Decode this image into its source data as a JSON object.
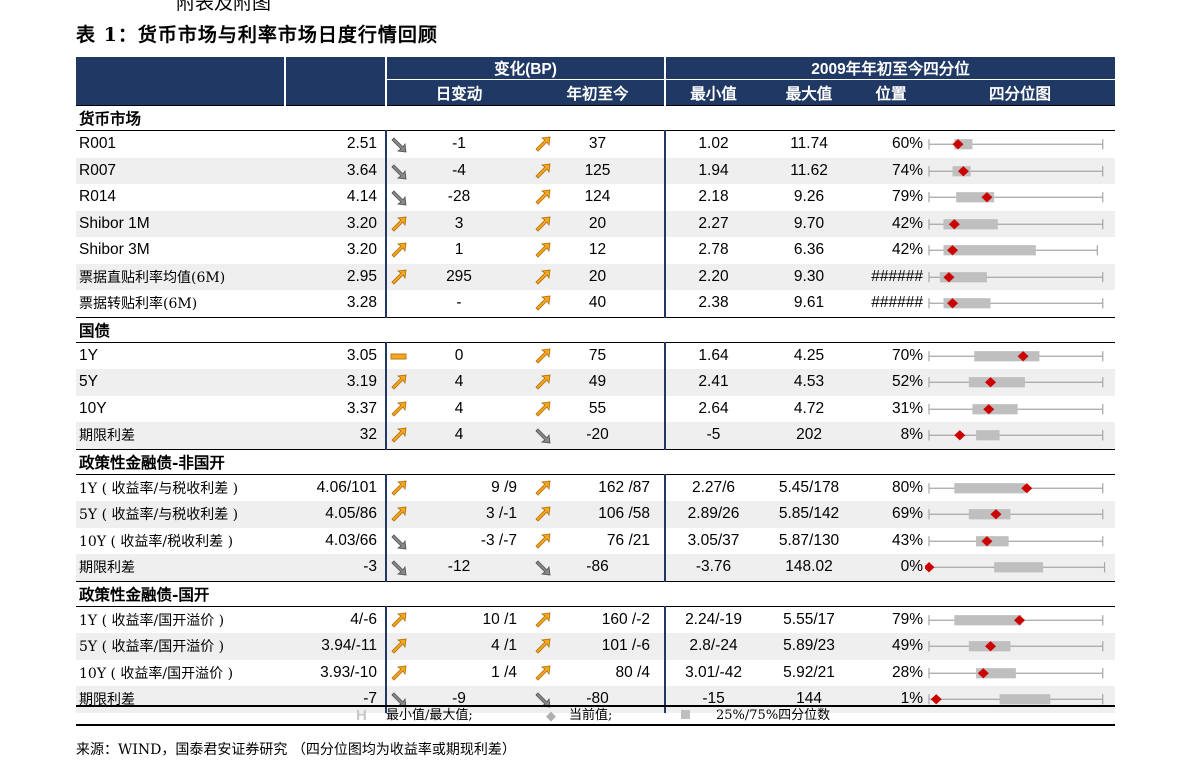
{
  "clipped_header": "附表及附图",
  "title": "表 1：货币市场与利率市场日度行情回顾",
  "header": {
    "group_change": "变化(BP)",
    "group_quartile": "2009年年初至今四分位",
    "daily_change": "日变动",
    "ytd_change": "年初至今",
    "min": "最小值",
    "max": "最大值",
    "position": "位置",
    "box_chart": "四分位图"
  },
  "colors": {
    "header_bg": "#1f3864",
    "up_arrow": "#f5a623",
    "down_arrow": "#8a8a8a",
    "marker": "#cc0000",
    "box": "#bfbfbf"
  },
  "sections": [
    {
      "name": "货币市场",
      "rows": [
        {
          "name": "R001",
          "value": "2.51",
          "d_dir": "down",
          "d": "-1",
          "y_dir": "up",
          "y": "37",
          "min": "1.02",
          "max": "11.74",
          "pos": "60%",
          "box": {
            "q1": 0.14,
            "q3": 0.24,
            "cur": 0.16,
            "max": 0.96
          }
        },
        {
          "name": "R007",
          "value": "3.64",
          "d_dir": "down",
          "d": "-4",
          "y_dir": "up",
          "y": "125",
          "min": "1.94",
          "max": "11.62",
          "pos": "74%",
          "box": {
            "q1": 0.13,
            "q3": 0.23,
            "cur": 0.19,
            "max": 0.96
          }
        },
        {
          "name": "R014",
          "value": "4.14",
          "d_dir": "down",
          "d": "-28",
          "y_dir": "up",
          "y": "124",
          "min": "2.18",
          "max": "9.26",
          "pos": "79%",
          "box": {
            "q1": 0.15,
            "q3": 0.36,
            "cur": 0.32,
            "max": 0.96
          }
        },
        {
          "name": "Shibor 1M",
          "value": "3.20",
          "d_dir": "up",
          "d": "3",
          "y_dir": "up",
          "y": "20",
          "min": "2.27",
          "max": "9.70",
          "pos": "42%",
          "box": {
            "q1": 0.08,
            "q3": 0.38,
            "cur": 0.14,
            "max": 0.96
          }
        },
        {
          "name": "Shibor 3M",
          "value": "3.20",
          "d_dir": "up",
          "d": "1",
          "y_dir": "up",
          "y": "12",
          "min": "2.78",
          "max": "6.36",
          "pos": "42%",
          "box": {
            "q1": 0.08,
            "q3": 0.59,
            "cur": 0.13,
            "max": 0.93
          }
        },
        {
          "name": "票据直贴利率均值(6M)",
          "value": "2.95",
          "d_dir": "up",
          "d": "295",
          "y_dir": "up",
          "y": "20",
          "min": "2.20",
          "max": "9.30",
          "pos": "######",
          "box": {
            "q1": 0.06,
            "q3": 0.32,
            "cur": 0.11,
            "max": 0.96
          }
        },
        {
          "name": "票据转贴利率(6M)",
          "value": "3.28",
          "d_dir": "none",
          "d": "-",
          "y_dir": "up",
          "y": "40",
          "min": "2.38",
          "max": "9.61",
          "pos": "######",
          "box": {
            "q1": 0.08,
            "q3": 0.34,
            "cur": 0.13,
            "max": 0.96
          }
        }
      ]
    },
    {
      "name": "国债",
      "rows": [
        {
          "name": "1Y",
          "value": "3.05",
          "d_dir": "flat",
          "d": "0",
          "y_dir": "up",
          "y": "75",
          "min": "1.64",
          "max": "4.25",
          "pos": "70%",
          "box": {
            "q1": 0.25,
            "q3": 0.61,
            "cur": 0.52,
            "max": 0.96
          }
        },
        {
          "name": "5Y",
          "value": "3.19",
          "d_dir": "up",
          "d": "4",
          "y_dir": "up",
          "y": "49",
          "min": "2.41",
          "max": "4.53",
          "pos": "52%",
          "box": {
            "q1": 0.22,
            "q3": 0.53,
            "cur": 0.34,
            "max": 0.96
          }
        },
        {
          "name": "10Y",
          "value": "3.37",
          "d_dir": "up",
          "d": "4",
          "y_dir": "up",
          "y": "55",
          "min": "2.64",
          "max": "4.72",
          "pos": "31%",
          "box": {
            "q1": 0.24,
            "q3": 0.49,
            "cur": 0.33,
            "max": 0.96
          }
        },
        {
          "name": "期限利差",
          "value": "32",
          "d_dir": "up",
          "d": "4",
          "y_dir": "down",
          "y": "-20",
          "min": "-5",
          "max": "202",
          "pos": "8%",
          "box": {
            "q1": 0.26,
            "q3": 0.39,
            "cur": 0.17,
            "max": 0.96
          }
        }
      ]
    },
    {
      "name": "政策性金融债-非国开",
      "rows": [
        {
          "name": "1Y ( 收益率/与税收利差 )",
          "value": "4.06/101",
          "d_dir": "up",
          "d": "9 /9",
          "y_dir": "up",
          "y": "162 /87",
          "min": "2.27/6",
          "max": "5.45/178",
          "pos": "80%",
          "box": {
            "q1": 0.14,
            "q3": 0.53,
            "cur": 0.54,
            "max": 0.96
          }
        },
        {
          "name": "5Y ( 收益率/与税收利差 )",
          "value": "4.05/86",
          "d_dir": "up",
          "d": "3 /-1",
          "y_dir": "up",
          "y": "106 /58",
          "min": "2.89/26",
          "max": "5.85/142",
          "pos": "69%",
          "box": {
            "q1": 0.22,
            "q3": 0.45,
            "cur": 0.37,
            "max": 0.96
          }
        },
        {
          "name": "10Y ( 收益率/税收利差 )",
          "value": "4.03/66",
          "d_dir": "down",
          "d": "-3 /-7",
          "y_dir": "up",
          "y": "76 /21",
          "min": "3.05/37",
          "max": "5.87/130",
          "pos": "43%",
          "box": {
            "q1": 0.26,
            "q3": 0.44,
            "cur": 0.32,
            "max": 0.96
          }
        },
        {
          "name": "期限利差",
          "value": "-3",
          "d_dir": "down",
          "d": "-12",
          "y_dir": "down",
          "y": "-86",
          "min": "-3.76",
          "max": "148.02",
          "pos": "0%",
          "box": {
            "q1": 0.36,
            "q3": 0.63,
            "cur": 0.0,
            "max": 0.97
          }
        }
      ]
    },
    {
      "name": "政策性金融债-国开",
      "rows": [
        {
          "name": "1Y ( 收益率/国开溢价 )",
          "value": "4/-6",
          "d_dir": "up",
          "d": "10 /1",
          "y_dir": "up",
          "y": "160 /-2",
          "min": "2.24/-19",
          "max": "5.55/17",
          "pos": "79%",
          "box": {
            "q1": 0.14,
            "q3": 0.51,
            "cur": 0.5,
            "max": 0.96
          }
        },
        {
          "name": "5Y ( 收益率/国开溢价 )",
          "value": "3.94/-11",
          "d_dir": "up",
          "d": "4 /1",
          "y_dir": "up",
          "y": "101 /-6",
          "min": "2.8/-24",
          "max": "5.89/23",
          "pos": "49%",
          "box": {
            "q1": 0.22,
            "q3": 0.45,
            "cur": 0.34,
            "max": 0.96
          }
        },
        {
          "name": "10Y ( 收益率/国开溢价 )",
          "value": "3.93/-10",
          "d_dir": "up",
          "d": "1 /4",
          "y_dir": "up",
          "y": "80 /4",
          "min": "3.01/-42",
          "max": "5.92/21",
          "pos": "28%",
          "box": {
            "q1": 0.26,
            "q3": 0.48,
            "cur": 0.3,
            "max": 0.96
          }
        },
        {
          "name": "期限利差",
          "value": "-7",
          "d_dir": "down",
          "d": "-9",
          "y_dir": "down",
          "y": "-80",
          "min": "-15",
          "max": "144",
          "pos": "1%",
          "box": {
            "q1": 0.39,
            "q3": 0.67,
            "cur": 0.04,
            "max": 0.96
          }
        }
      ]
    }
  ],
  "legend": {
    "minmax_symbol": "H",
    "minmax": "最小值/最大值;",
    "current": "当前值;",
    "quartile": "25%/75%四分位数"
  },
  "source": "来源：WIND，国泰君安证券研究    （四分位图均为收益率或期现利差）"
}
